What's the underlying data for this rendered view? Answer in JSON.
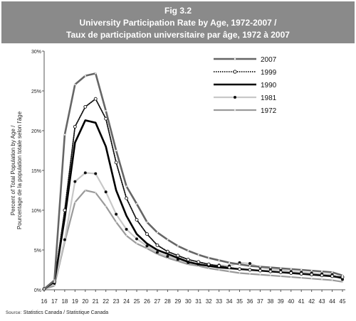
{
  "figure": {
    "number": "Fig 3.2",
    "title_en": "University Participation Rate by Age, 1972-2007 /",
    "title_fr": "Taux de participation universitaire par âge, 1972 à 2007",
    "source_label": "Source:",
    "source_text": "Statistics Canada / Statistique Canada"
  },
  "colors": {
    "header_band": "#8a8a8a",
    "s2007": "#666666",
    "s1999": "#111111",
    "s1990": "#000000",
    "s1981": "#c8c8c8",
    "s1972": "#9a9a9a"
  },
  "chart_data": {
    "type": "line",
    "title": "University Participation Rate by Age, 1972-2007 / Taux de participation universitaire par âge, 1972 à 2007",
    "xlabel": "",
    "ylabel": "Percent of Total Population by Age / Pourcentage de la population totale selon l'âge",
    "ylabel_line1": "Percent of Total Population by Age /",
    "ylabel_line2": "Pourcentage de la population totale selon l'âge",
    "x": [
      16,
      17,
      18,
      19,
      20,
      21,
      22,
      23,
      24,
      25,
      26,
      27,
      28,
      29,
      30,
      31,
      32,
      33,
      34,
      35,
      36,
      37,
      38,
      39,
      40,
      41,
      42,
      43,
      44,
      45
    ],
    "x_tick_labels": [
      "16",
      "17",
      "18",
      "19",
      "20",
      "21",
      "22",
      "23",
      "24",
      "25",
      "26",
      "27",
      "28",
      "29",
      "30",
      "31",
      "32",
      "33",
      "34",
      "35",
      "36",
      "37",
      "38",
      "39",
      "40",
      "41",
      "42",
      "43",
      "44",
      "45"
    ],
    "ylim": [
      0,
      30
    ],
    "y_ticks": [
      0,
      5,
      10,
      15,
      20,
      25,
      30
    ],
    "y_tick_labels": [
      "0%",
      "5%",
      "10%",
      "15%",
      "20%",
      "25%",
      "30%"
    ],
    "grid": false,
    "legend_position": "top-right",
    "series": [
      {
        "name": "2007",
        "style": "solid-thick-dots",
        "values": [
          0.1,
          1.2,
          19.5,
          25.8,
          26.9,
          27.2,
          22.5,
          17.5,
          13.0,
          10.8,
          8.5,
          7.2,
          6.3,
          5.5,
          4.9,
          4.4,
          4.0,
          3.7,
          3.4,
          3.2,
          3.0,
          2.9,
          2.8,
          2.7,
          2.6,
          2.5,
          2.4,
          2.3,
          2.2,
          1.8
        ]
      },
      {
        "name": "1999",
        "style": "dotted-circles",
        "values": [
          0.1,
          1.0,
          10.0,
          20.5,
          23.0,
          24.0,
          21.5,
          16.0,
          11.5,
          8.8,
          7.0,
          5.6,
          4.8,
          4.3,
          3.8,
          3.5,
          3.2,
          3.0,
          2.8,
          2.6,
          2.5,
          2.4,
          2.3,
          2.2,
          2.1,
          2.0,
          1.9,
          1.8,
          1.7,
          1.6
        ]
      },
      {
        "name": "1990",
        "style": "solid-thick",
        "values": [
          0.1,
          1.0,
          9.0,
          18.5,
          21.3,
          21.0,
          18.0,
          12.5,
          9.3,
          7.0,
          5.8,
          5.0,
          4.5,
          4.0,
          3.5,
          3.2,
          3.0,
          2.8,
          2.7,
          2.6,
          2.5,
          2.4,
          2.3,
          2.2,
          2.1,
          2.0,
          1.9,
          1.8,
          1.7,
          1.5
        ]
      },
      {
        "name": "1981",
        "style": "light-gray-dots",
        "values": [
          0.1,
          0.8,
          6.3,
          13.6,
          14.7,
          14.6,
          12.3,
          9.5,
          7.6,
          6.4,
          5.5,
          4.7,
          4.2,
          3.8,
          3.4,
          3.2,
          3.0,
          3.1,
          3.0,
          3.4,
          3.3,
          2.8,
          2.6,
          2.5,
          2.3,
          2.2,
          2.1,
          2.0,
          1.9,
          1.3
        ]
      },
      {
        "name": "1972",
        "style": "gray",
        "values": [
          0.1,
          0.5,
          6.0,
          11.0,
          12.5,
          12.2,
          10.5,
          8.5,
          6.8,
          5.8,
          5.2,
          4.5,
          4.0,
          3.6,
          3.2,
          3.0,
          2.7,
          2.5,
          2.3,
          2.1,
          2.0,
          1.9,
          1.8,
          1.7,
          1.6,
          1.5,
          1.4,
          1.3,
          1.2,
          1.0
        ]
      }
    ]
  }
}
